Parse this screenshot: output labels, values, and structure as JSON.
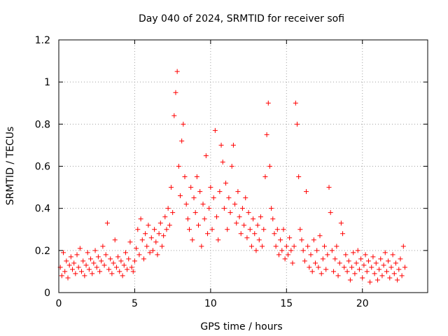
{
  "chart_data": {
    "type": "scatter",
    "title": "Day 040 of 2024, SRMTID for receiver sofi",
    "xlabel": "GPS time / hours",
    "ylabel": "SRMTID / TECUs",
    "xlim": [
      0,
      24.3
    ],
    "ylim": [
      0,
      1.2
    ],
    "x_ticks": [
      0,
      5,
      10,
      15,
      20
    ],
    "x_tick_labels": [
      "0",
      "5",
      "10",
      "15",
      "20"
    ],
    "y_ticks": [
      0,
      0.2,
      0.4,
      0.6,
      0.8,
      1.0,
      1.2
    ],
    "y_tick_labels": [
      "0",
      "0.2",
      "0.4",
      "0.6",
      "0.8",
      "1",
      "1.2"
    ],
    "grid": true,
    "marker": "+",
    "color": "#ff0000",
    "series": [
      {
        "name": "SRMTID",
        "points": [
          [
            0.1,
            0.12
          ],
          [
            0.2,
            0.08
          ],
          [
            0.3,
            0.19
          ],
          [
            0.4,
            0.1
          ],
          [
            0.5,
            0.15
          ],
          [
            0.6,
            0.07
          ],
          [
            0.7,
            0.13
          ],
          [
            0.8,
            0.17
          ],
          [
            0.9,
            0.11
          ],
          [
            1.0,
            0.14
          ],
          [
            1.1,
            0.09
          ],
          [
            1.2,
            0.18
          ],
          [
            1.3,
            0.12
          ],
          [
            1.4,
            0.21
          ],
          [
            1.5,
            0.1
          ],
          [
            1.6,
            0.15
          ],
          [
            1.7,
            0.08
          ],
          [
            1.8,
            0.13
          ],
          [
            1.9,
            0.19
          ],
          [
            2.0,
            0.11
          ],
          [
            2.1,
            0.16
          ],
          [
            2.2,
            0.09
          ],
          [
            2.3,
            0.14
          ],
          [
            2.4,
            0.2
          ],
          [
            2.5,
            0.12
          ],
          [
            2.6,
            0.17
          ],
          [
            2.7,
            0.1
          ],
          [
            2.8,
            0.15
          ],
          [
            2.9,
            0.22
          ],
          [
            3.0,
            0.13
          ],
          [
            3.1,
            0.18
          ],
          [
            3.2,
            0.33
          ],
          [
            3.3,
            0.11
          ],
          [
            3.4,
            0.16
          ],
          [
            3.5,
            0.09
          ],
          [
            3.6,
            0.14
          ],
          [
            3.7,
            0.25
          ],
          [
            3.8,
            0.12
          ],
          [
            3.9,
            0.17
          ],
          [
            4.0,
            0.1
          ],
          [
            4.1,
            0.15
          ],
          [
            4.2,
            0.08
          ],
          [
            4.3,
            0.13
          ],
          [
            4.4,
            0.19
          ],
          [
            4.5,
            0.11
          ],
          [
            4.6,
            0.16
          ],
          [
            4.7,
            0.24
          ],
          [
            4.8,
            0.12
          ],
          [
            4.9,
            0.1
          ],
          [
            5.0,
            0.15
          ],
          [
            5.1,
            0.21
          ],
          [
            5.2,
            0.3
          ],
          [
            5.3,
            0.18
          ],
          [
            5.4,
            0.35
          ],
          [
            5.5,
            0.25
          ],
          [
            5.6,
            0.16
          ],
          [
            5.7,
            0.28
          ],
          [
            5.8,
            0.22
          ],
          [
            5.9,
            0.32
          ],
          [
            6.0,
            0.19
          ],
          [
            6.1,
            0.26
          ],
          [
            6.2,
            0.2
          ],
          [
            6.3,
            0.3
          ],
          [
            6.4,
            0.24
          ],
          [
            6.5,
            0.18
          ],
          [
            6.6,
            0.28
          ],
          [
            6.7,
            0.33
          ],
          [
            6.8,
            0.22
          ],
          [
            6.9,
            0.27
          ],
          [
            7.0,
            0.36
          ],
          [
            7.1,
            0.3
          ],
          [
            7.2,
            0.4
          ],
          [
            7.3,
            0.32
          ],
          [
            7.4,
            0.5
          ],
          [
            7.5,
            0.38
          ],
          [
            7.6,
            0.84
          ],
          [
            7.7,
            0.95
          ],
          [
            7.8,
            1.05
          ],
          [
            7.9,
            0.6
          ],
          [
            8.0,
            0.46
          ],
          [
            8.1,
            0.72
          ],
          [
            8.2,
            0.8
          ],
          [
            8.3,
            0.55
          ],
          [
            8.4,
            0.42
          ],
          [
            8.5,
            0.35
          ],
          [
            8.6,
            0.3
          ],
          [
            8.7,
            0.5
          ],
          [
            8.8,
            0.25
          ],
          [
            8.9,
            0.45
          ],
          [
            9.0,
            0.38
          ],
          [
            9.1,
            0.55
          ],
          [
            9.2,
            0.32
          ],
          [
            9.3,
            0.48
          ],
          [
            9.4,
            0.22
          ],
          [
            9.5,
            0.42
          ],
          [
            9.6,
            0.35
          ],
          [
            9.7,
            0.65
          ],
          [
            9.8,
            0.28
          ],
          [
            9.9,
            0.4
          ],
          [
            10.0,
            0.5
          ],
          [
            10.1,
            0.3
          ],
          [
            10.2,
            0.45
          ],
          [
            10.3,
            0.77
          ],
          [
            10.4,
            0.36
          ],
          [
            10.5,
            0.25
          ],
          [
            10.6,
            0.48
          ],
          [
            10.7,
            0.7
          ],
          [
            10.8,
            0.62
          ],
          [
            10.9,
            0.4
          ],
          [
            11.0,
            0.52
          ],
          [
            11.1,
            0.3
          ],
          [
            11.2,
            0.45
          ],
          [
            11.3,
            0.38
          ],
          [
            11.4,
            0.6
          ],
          [
            11.5,
            0.7
          ],
          [
            11.6,
            0.42
          ],
          [
            11.7,
            0.33
          ],
          [
            11.8,
            0.48
          ],
          [
            11.9,
            0.36
          ],
          [
            12.0,
            0.28
          ],
          [
            12.1,
            0.4
          ],
          [
            12.2,
            0.32
          ],
          [
            12.3,
            0.45
          ],
          [
            12.4,
            0.26
          ],
          [
            12.5,
            0.38
          ],
          [
            12.6,
            0.3
          ],
          [
            12.7,
            0.22
          ],
          [
            12.8,
            0.35
          ],
          [
            12.9,
            0.28
          ],
          [
            13.0,
            0.2
          ],
          [
            13.1,
            0.32
          ],
          [
            13.2,
            0.25
          ],
          [
            13.3,
            0.36
          ],
          [
            13.4,
            0.22
          ],
          [
            13.5,
            0.3
          ],
          [
            13.6,
            0.55
          ],
          [
            13.7,
            0.75
          ],
          [
            13.8,
            0.9
          ],
          [
            13.9,
            0.6
          ],
          [
            14.0,
            0.4
          ],
          [
            14.1,
            0.35
          ],
          [
            14.2,
            0.28
          ],
          [
            14.3,
            0.22
          ],
          [
            14.4,
            0.3
          ],
          [
            14.5,
            0.18
          ],
          [
            14.6,
            0.25
          ],
          [
            14.7,
            0.2
          ],
          [
            14.8,
            0.3
          ],
          [
            14.9,
            0.16
          ],
          [
            15.0,
            0.22
          ],
          [
            15.1,
            0.18
          ],
          [
            15.2,
            0.26
          ],
          [
            15.3,
            0.2
          ],
          [
            15.4,
            0.14
          ],
          [
            15.5,
            0.22
          ],
          [
            15.6,
            0.9
          ],
          [
            15.7,
            0.8
          ],
          [
            15.8,
            0.55
          ],
          [
            15.9,
            0.3
          ],
          [
            16.0,
            0.25
          ],
          [
            16.1,
            0.2
          ],
          [
            16.2,
            0.15
          ],
          [
            16.3,
            0.48
          ],
          [
            16.4,
            0.22
          ],
          [
            16.5,
            0.12
          ],
          [
            16.6,
            0.18
          ],
          [
            16.7,
            0.1
          ],
          [
            16.8,
            0.25
          ],
          [
            16.9,
            0.14
          ],
          [
            17.0,
            0.2
          ],
          [
            17.1,
            0.12
          ],
          [
            17.2,
            0.27
          ],
          [
            17.3,
            0.09
          ],
          [
            17.4,
            0.16
          ],
          [
            17.5,
            0.22
          ],
          [
            17.6,
            0.11
          ],
          [
            17.7,
            0.18
          ],
          [
            17.8,
            0.5
          ],
          [
            17.9,
            0.38
          ],
          [
            18.0,
            0.2
          ],
          [
            18.1,
            0.1
          ],
          [
            18.2,
            0.16
          ],
          [
            18.3,
            0.22
          ],
          [
            18.4,
            0.08
          ],
          [
            18.5,
            0.14
          ],
          [
            18.6,
            0.33
          ],
          [
            18.7,
            0.28
          ],
          [
            18.8,
            0.12
          ],
          [
            18.9,
            0.18
          ],
          [
            19.0,
            0.1
          ],
          [
            19.1,
            0.15
          ],
          [
            19.2,
            0.06
          ],
          [
            19.3,
            0.12
          ],
          [
            19.4,
            0.19
          ],
          [
            19.5,
            0.09
          ],
          [
            19.6,
            0.14
          ],
          [
            19.7,
            0.2
          ],
          [
            19.8,
            0.11
          ],
          [
            19.9,
            0.16
          ],
          [
            20.0,
            0.07
          ],
          [
            20.1,
            0.13
          ],
          [
            20.2,
            0.18
          ],
          [
            20.3,
            0.1
          ],
          [
            20.4,
            0.15
          ],
          [
            20.5,
            0.05
          ],
          [
            20.6,
            0.12
          ],
          [
            20.7,
            0.17
          ],
          [
            20.8,
            0.09
          ],
          [
            20.9,
            0.14
          ],
          [
            21.0,
            0.06
          ],
          [
            21.1,
            0.11
          ],
          [
            21.2,
            0.16
          ],
          [
            21.3,
            0.08
          ],
          [
            21.4,
            0.13
          ],
          [
            21.5,
            0.19
          ],
          [
            21.6,
            0.1
          ],
          [
            21.7,
            0.15
          ],
          [
            21.8,
            0.07
          ],
          [
            21.9,
            0.12
          ],
          [
            22.0,
            0.18
          ],
          [
            22.1,
            0.09
          ],
          [
            22.2,
            0.14
          ],
          [
            22.3,
            0.06
          ],
          [
            22.4,
            0.11
          ],
          [
            22.5,
            0.16
          ],
          [
            22.6,
            0.08
          ],
          [
            22.7,
            0.22
          ],
          [
            22.8,
            0.12
          ]
        ]
      }
    ]
  }
}
